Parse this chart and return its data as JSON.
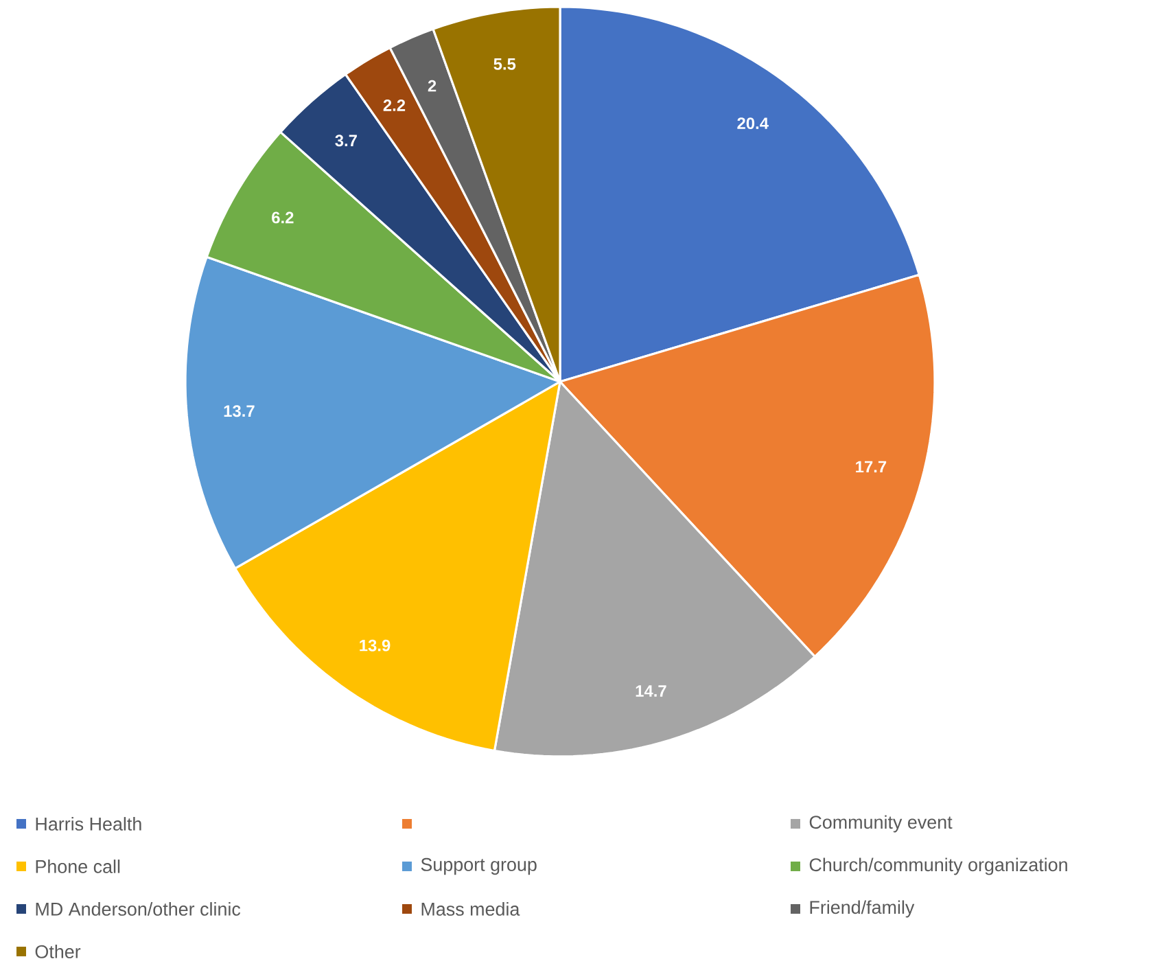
{
  "chart_data": {
    "type": "pie",
    "categories": [
      "Harris Health",
      null,
      "Community event",
      "Phone call",
      "Support group",
      "Church/community organization",
      "MD Anderson/other clinic",
      "Mass media",
      "Friend/family",
      "Other"
    ],
    "values": [
      20.4,
      17.7,
      14.7,
      13.9,
      13.7,
      6.2,
      3.7,
      2.2,
      2,
      5.5
    ],
    "colors": [
      "#4472c4",
      "#ed7d31",
      "#a5a5a5",
      "#ffc000",
      "#5b9bd5",
      "#70ad47",
      "#264478",
      "#9e480e",
      "#636363",
      "#997300"
    ],
    "data_labels": true,
    "legend": "bottom"
  }
}
